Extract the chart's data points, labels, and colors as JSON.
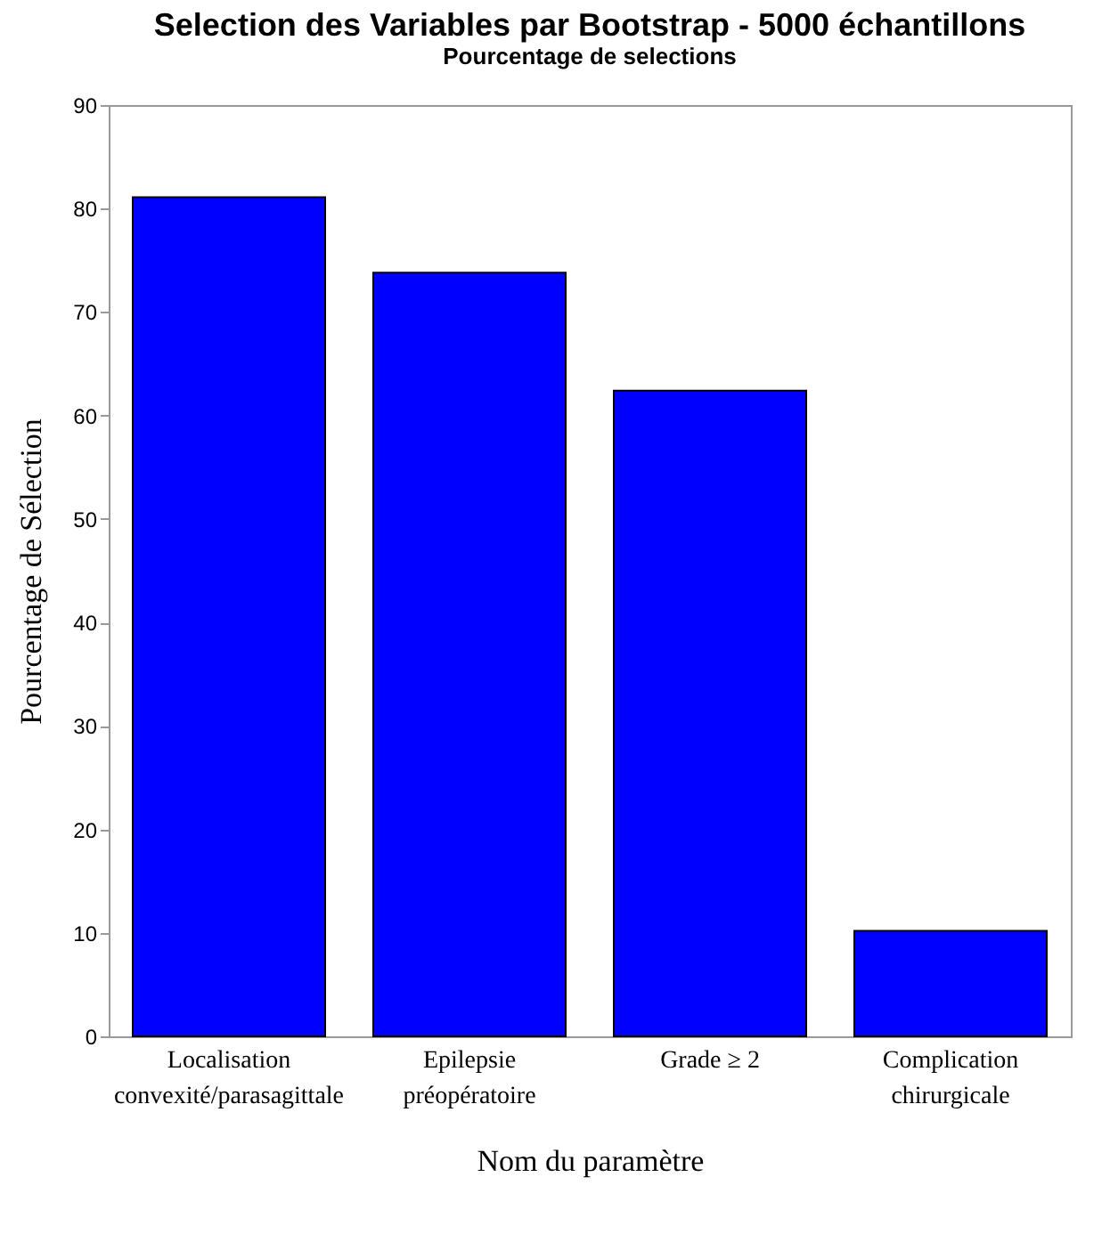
{
  "chart_data": {
    "type": "bar",
    "title": "Selection des Variables par Bootstrap - 5000 échantillons",
    "subtitle": "Pourcentage de selections",
    "xlabel": "Nom du paramètre",
    "ylabel": "Pourcentage de Sélection",
    "categories": [
      "Localisation\nconvexité/parasagittale",
      "Epilepsie\npréopératoire",
      "Grade ≥ 2",
      "Complication\nchirurgicale"
    ],
    "values": [
      81.1,
      73.8,
      62.4,
      10.2
    ],
    "color": "#0000ff",
    "ylim": [
      0,
      90
    ],
    "yticks": [
      0,
      10,
      20,
      30,
      40,
      50,
      60,
      70,
      80,
      90
    ],
    "grid": false
  }
}
